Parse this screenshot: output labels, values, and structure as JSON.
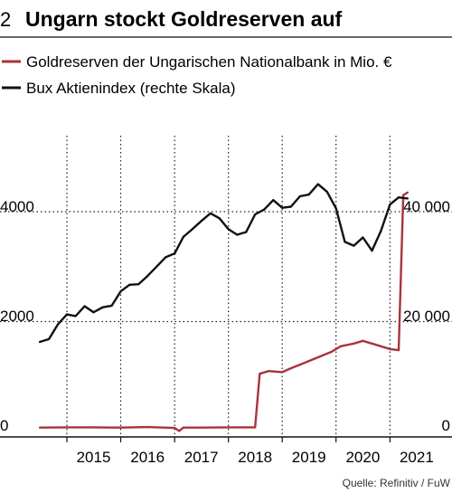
{
  "header": {
    "number": "2",
    "title": "Ungarn stockt Goldreserven auf"
  },
  "source": "Quelle: Refinitiv / FuW",
  "chart_data": {
    "type": "line",
    "title": "Ungarn stockt Goldreserven auf",
    "x_ticks": [
      "2015",
      "2016",
      "2017",
      "2018",
      "2019",
      "2020",
      "2021"
    ],
    "xlim": [
      "2014-07-01",
      "2021-06-01"
    ],
    "y_left": {
      "ylim": [
        0,
        5300
      ],
      "ticks": [
        "0",
        "2000",
        "4000"
      ]
    },
    "y_right": {
      "ylim": [
        0,
        53000
      ],
      "ticks": [
        "0",
        "20 000",
        "40 000"
      ]
    },
    "grid": true,
    "legend_position": "top-left",
    "colors": {
      "gold": "#a8343a",
      "bux": "#111111",
      "grid": "#222222"
    },
    "series": [
      {
        "name": "Goldreserven der Ungarischen Nationalbank in Mio. €",
        "axis": "left",
        "color": "#a8343a",
        "x": [
          "2014-07-01",
          "2015-01-01",
          "2015-07-01",
          "2016-01-01",
          "2016-07-01",
          "2017-01-01",
          "2017-02-01",
          "2017-03-01",
          "2017-07-01",
          "2018-01-01",
          "2018-07-01",
          "2018-08-01",
          "2018-10-01",
          "2019-01-01",
          "2019-03-01",
          "2019-06-01",
          "2019-09-01",
          "2019-12-01",
          "2020-02-01",
          "2020-05-01",
          "2020-07-01",
          "2020-09-01",
          "2020-11-01",
          "2021-01-01",
          "2021-03-01",
          "2021-04-01",
          "2021-05-01"
        ],
        "y": [
          70,
          75,
          75,
          70,
          80,
          65,
          10,
          70,
          70,
          75,
          75,
          1050,
          1100,
          1080,
          1150,
          1250,
          1350,
          1450,
          1550,
          1600,
          1650,
          1600,
          1550,
          1500,
          1480,
          4300,
          4350
        ]
      },
      {
        "name": "Bux Aktienindex (rechte Skala)",
        "axis": "right",
        "color": "#111111",
        "x": [
          "2014-07-01",
          "2014-09-01",
          "2014-11-01",
          "2015-01-01",
          "2015-03-01",
          "2015-05-01",
          "2015-07-01",
          "2015-09-01",
          "2015-11-01",
          "2016-01-01",
          "2016-03-01",
          "2016-05-01",
          "2016-07-01",
          "2016-09-01",
          "2016-11-01",
          "2017-01-01",
          "2017-03-01",
          "2017-05-01",
          "2017-07-01",
          "2017-09-01",
          "2017-11-01",
          "2018-01-01",
          "2018-03-01",
          "2018-05-01",
          "2018-07-01",
          "2018-09-01",
          "2018-11-01",
          "2019-01-01",
          "2019-03-01",
          "2019-05-01",
          "2019-07-01",
          "2019-09-01",
          "2019-11-01",
          "2020-01-01",
          "2020-03-01",
          "2020-05-01",
          "2020-07-01",
          "2020-09-01",
          "2020-11-01",
          "2021-01-01",
          "2021-03-01",
          "2021-05-01"
        ],
        "y": [
          16300,
          16800,
          19500,
          21300,
          21000,
          22800,
          21700,
          22600,
          22900,
          25500,
          26700,
          26800,
          28300,
          30000,
          31700,
          32400,
          35400,
          36800,
          38300,
          39700,
          38800,
          36800,
          35800,
          36300,
          39500,
          40400,
          42100,
          40700,
          40900,
          42800,
          43100,
          45000,
          43600,
          40600,
          34500,
          33800,
          35300,
          32900,
          36500,
          41300,
          42600,
          42400
        ]
      }
    ]
  }
}
